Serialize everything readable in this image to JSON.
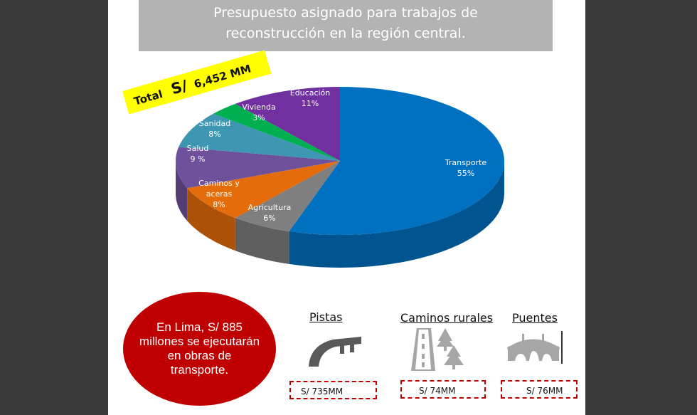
{
  "title": {
    "line1": "Presupuesto asignado para trabajos de",
    "line2": "reconstrucción en la región central."
  },
  "total_banner": {
    "label": "Total",
    "currency": "S/",
    "amount": "6,452 MM"
  },
  "chart_data": {
    "type": "pie",
    "style": "3d",
    "slices": [
      {
        "label": "Transporte",
        "value": 55,
        "value_label": "55%",
        "color": "#0070c0"
      },
      {
        "label": "Agricultura",
        "value": 6,
        "value_label": "6%",
        "color": "#7f7f7f"
      },
      {
        "label": "Caminos y aceras",
        "value": 8,
        "value_label": "8%",
        "color": "#e46c0a"
      },
      {
        "label": "Salud",
        "value": 9,
        "value_label": "9 %",
        "color": "#6f519b"
      },
      {
        "label": "Sanidad",
        "value": 8,
        "value_label": "8%",
        "color": "#3d97b2"
      },
      {
        "label": "Vivienda",
        "value": 3,
        "value_label": "3%",
        "color": "#00b050"
      },
      {
        "label": "Educación",
        "value": 11,
        "value_label": "11%",
        "color": "#7030a0"
      }
    ]
  },
  "lima_callout": "En Lima, S/ 885 millones se ejecutarán en obras de transporte.",
  "categories": [
    {
      "title": "Pistas",
      "icon": "highway-icon",
      "amount": "S/ 735MM"
    },
    {
      "title": "Caminos rurales",
      "icon": "rural-road-icon",
      "amount": "S/ 74MM"
    },
    {
      "title": "Puentes",
      "icon": "bridge-icon",
      "amount": "S/ 76MM"
    }
  ]
}
